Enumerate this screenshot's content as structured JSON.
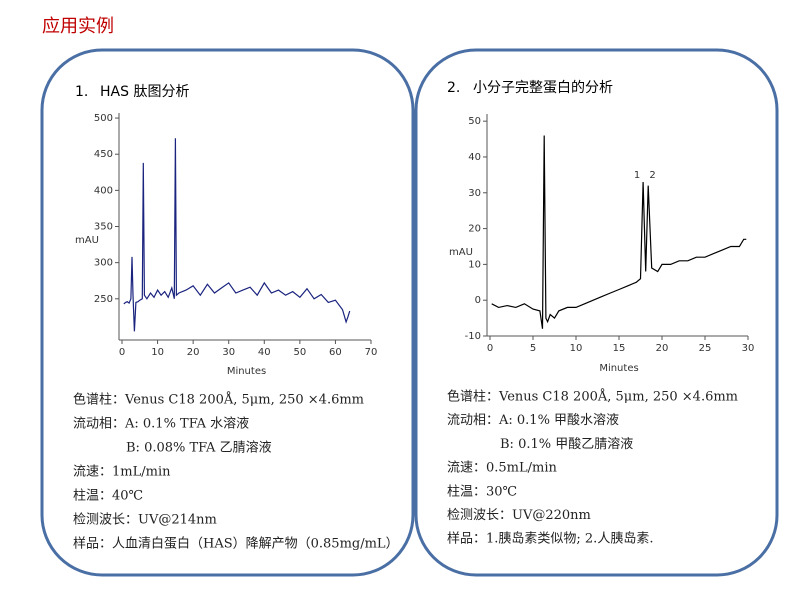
{
  "title": "应用实例",
  "panels": [
    {
      "number": "1.",
      "heading": "HAS 肽图分析",
      "chart": {
        "type": "line",
        "y_label": "mAU",
        "x_label": "Minutes",
        "xlim": [
          0,
          70
        ],
        "ylim": [
          193,
          507
        ],
        "xticks": [
          0,
          10,
          20,
          30,
          40,
          50,
          60,
          70
        ],
        "yticks": [
          250,
          300,
          350,
          400,
          450,
          500
        ],
        "color": "#1a237e",
        "x": [
          0.5,
          1,
          1.5,
          2,
          2.5,
          2.8,
          3.1,
          3.5,
          3.9,
          4.5,
          5,
          5.7,
          6,
          6.3,
          7,
          8,
          9,
          10,
          11,
          12,
          13,
          14,
          14.7,
          15,
          15.3,
          16,
          18,
          20,
          22,
          24,
          26,
          28,
          30,
          32,
          34,
          36,
          38,
          40,
          42,
          44,
          46,
          48,
          50,
          52,
          54,
          56,
          58,
          60,
          62,
          63,
          63.5,
          64
        ],
        "values": [
          243,
          245,
          246,
          244,
          250,
          308,
          255,
          205,
          245,
          246,
          248,
          250,
          438,
          255,
          250,
          258,
          252,
          262,
          255,
          260,
          252,
          265,
          250,
          472,
          255,
          258,
          262,
          268,
          255,
          270,
          258,
          265,
          272,
          258,
          262,
          266,
          255,
          272,
          258,
          262,
          255,
          260,
          252,
          264,
          250,
          256,
          245,
          248,
          235,
          218,
          225,
          233
        ]
      }
    },
    {
      "number": "2.",
      "heading": "小分子完整蛋白的分析",
      "chart": {
        "type": "line",
        "y_label": "mAU",
        "x_label": "Minutes",
        "xlim": [
          0,
          30
        ],
        "ylim": [
          -10,
          52
        ],
        "xticks": [
          0,
          5,
          10,
          15,
          20,
          25,
          30
        ],
        "yticks": [
          -10,
          0,
          10,
          20,
          30,
          40,
          50
        ],
        "color": "#000000",
        "x": [
          0.2,
          1,
          2,
          3,
          4,
          5,
          5.8,
          6.1,
          6.3,
          6.5,
          6.7,
          7,
          7.5,
          8,
          9,
          10,
          11,
          12,
          13,
          14,
          15,
          16,
          17,
          17.5,
          17.8,
          18.1,
          18.4,
          18.8,
          19.5,
          20,
          21,
          22,
          23,
          24,
          25,
          26,
          27,
          28,
          29,
          29.5,
          29.8
        ],
        "values": [
          -1,
          -2,
          -1.5,
          -2,
          -1,
          -2.5,
          -3,
          -8,
          46,
          -5,
          -6,
          -4,
          -5,
          -3,
          -2,
          -2,
          -1,
          0,
          1,
          2,
          3,
          4,
          5,
          6,
          33,
          8,
          32,
          9,
          8,
          10,
          10,
          11,
          11,
          12,
          12,
          13,
          14,
          15,
          15,
          17,
          17
        ],
        "annotations": [
          "1",
          "2"
        ]
      }
    }
  ],
  "specs": [
    [
      "色谱柱：Venus C18 200Å, 5μm, 250 ×4.6mm",
      "流动相：A: 0.1% TFA 水溶液",
      "B: 0.08% TFA 乙腈溶液",
      "流速：1mL/min",
      "柱温：40℃",
      "检测波长：UV@214nm",
      "样品：人血清白蛋白（HAS）降解产物（0.85mg/mL）"
    ],
    [
      "色谱柱：Venus C18 200Å, 5μm, 250 ×4.6mm",
      "流动相：A: 0.1%  甲酸水溶液",
      "B: 0.1%  甲酸乙腈溶液",
      "流速：0.5mL/min",
      "柱温：30℃",
      "检测波长：UV@220nm",
      "样品：1.胰岛素类似物; 2.人胰岛素."
    ]
  ]
}
